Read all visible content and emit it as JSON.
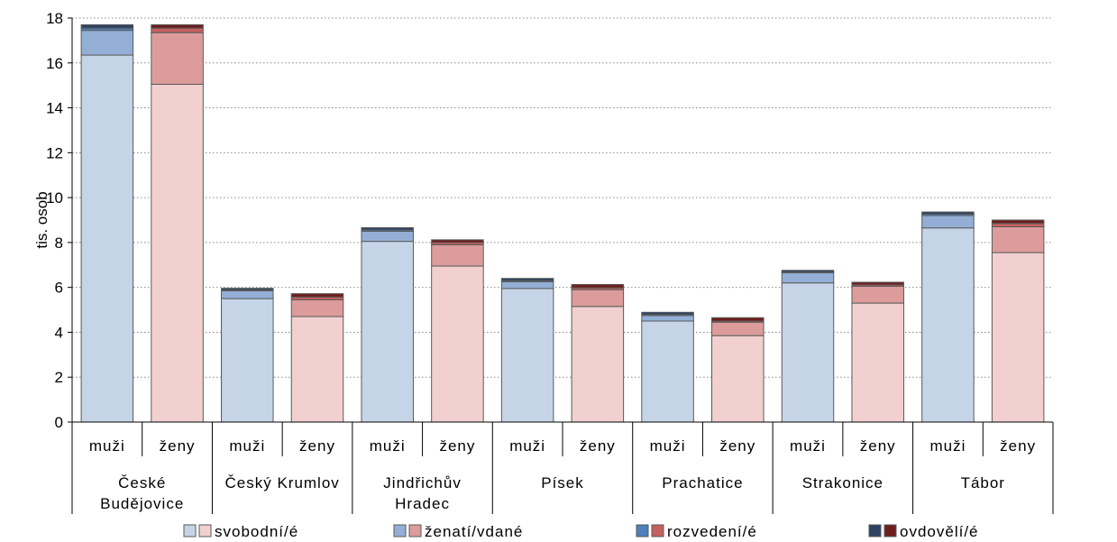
{
  "chart_data": {
    "type": "bar",
    "stacked": true,
    "ylabel": "tis. osob",
    "ylim": [
      0,
      18
    ],
    "yticks": [
      "0",
      "2",
      "4",
      "6",
      "8",
      "10",
      "12",
      "14",
      "16",
      "18"
    ],
    "grid": true,
    "legend_position": "bottom",
    "groups": [
      "České Budějovice",
      "Český Krumlov",
      "Jindřichův Hradec",
      "Písek",
      "Prachatice",
      "Strakonice",
      "Tábor"
    ],
    "categories": [
      "muži",
      "ženy",
      "muži",
      "ženy",
      "muži",
      "ženy",
      "muži",
      "ženy",
      "muži",
      "ženy",
      "muži",
      "ženy",
      "muži",
      "ženy"
    ],
    "series": [
      {
        "name": "svobodní/é",
        "values": [
          16.35,
          15.05,
          5.5,
          4.7,
          8.05,
          6.95,
          5.95,
          5.15,
          4.5,
          3.85,
          6.2,
          5.3,
          8.65,
          7.55
        ]
      },
      {
        "name": "ženatí/vdané",
        "values": [
          1.1,
          2.3,
          0.35,
          0.75,
          0.45,
          0.95,
          0.3,
          0.75,
          0.25,
          0.6,
          0.45,
          0.75,
          0.55,
          1.15
        ]
      },
      {
        "name": "rozvedení/é",
        "values": [
          0.1,
          0.2,
          0.03,
          0.12,
          0.06,
          0.1,
          0.05,
          0.08,
          0.04,
          0.05,
          0.03,
          0.06,
          0.06,
          0.15
        ]
      },
      {
        "name": "ovdovělí/é",
        "values": [
          0.15,
          0.15,
          0.08,
          0.15,
          0.1,
          0.12,
          0.1,
          0.15,
          0.1,
          0.15,
          0.08,
          0.12,
          0.1,
          0.15
        ]
      }
    ],
    "colors": {
      "muzi": [
        "#c6d4e7",
        "#93afd6",
        "#4f7fbc",
        "#2d4263"
      ],
      "zeny": [
        "#f2d0d0",
        "#dc9c9c",
        "#c46060",
        "#6e1e1e"
      ]
    }
  }
}
